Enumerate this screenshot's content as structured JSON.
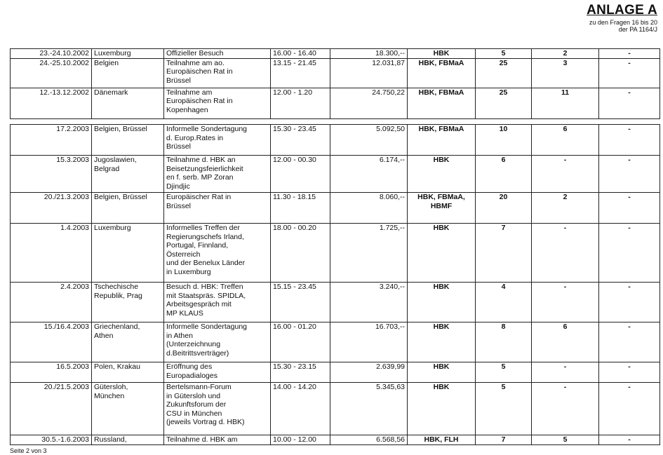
{
  "header": {
    "title": "ANLAGE A",
    "subtitle_line1": "zu den Fragen 16 bis 20",
    "subtitle_line2": "der PA 1164/J"
  },
  "table1": [
    [
      "23.-24.10.2002",
      "Luxemburg",
      "Offizieller Besuch",
      "16.00 - 16.40",
      "18.300,--",
      "HBK",
      "5",
      "2",
      "-"
    ],
    [
      "24.-25.10.2002",
      "Belgien",
      "Teilnahme am ao.\nEuropäischen Rat in\nBrüssel",
      "13.15 - 21.45",
      "12.031,87",
      "HBK, FBMaA",
      "25",
      "3",
      "-"
    ],
    [
      "12.-13.12.2002",
      "Dänemark",
      "Teilnahme am\nEuropäischen Rat in\nKopenhagen",
      "12.00 - 1.20",
      "24.750,22",
      "HBK, FBMaA",
      "25",
      "11",
      "-"
    ]
  ],
  "table2": [
    [
      "17.2.2003",
      "Belgien, Brüssel",
      "Informelle Sondertagung\nd. Europ.Rates in\nBrüssel",
      "15.30 - 23.45",
      "5.092,50",
      "HBK, FBMaA",
      "10",
      "6",
      "-"
    ],
    [
      "15.3.2003",
      "Jugoslawien,\nBelgrad",
      "Teilnahme d. HBK an\nBeisetzungsfeierlichkeit\nen f. serb. MP Zoran\nDjindjic",
      "12.00 - 00.30",
      "6.174,--",
      "HBK",
      "6",
      "-",
      "-"
    ],
    [
      "20./21.3.2003",
      "Belgien, Brüssel",
      "Europäischer Rat in\nBrüssel",
      "11.30 - 18.15",
      "8.060,--",
      "HBK, FBMaA,\nHBMF",
      "20",
      "2",
      "-"
    ],
    [
      "1.4.2003",
      "Luxemburg",
      "Informelles Treffen der\nRegierungschefs Irland,\nPortugal, Finnland,\nÖsterreich\nund der Benelux Länder\nin Luxemburg",
      "18.00 - 00.20",
      "1.725,--",
      "HBK",
      "7",
      "-",
      "-"
    ],
    [
      "2.4.2003",
      "Tschechische\nRepublik, Prag",
      "Besuch d. HBK: Treffen\nmit Staatspräs. SPIDLA,\nArbeitsgespräch mit\nMP KLAUS",
      "15.15 - 23.45",
      "3.240,--",
      "HBK",
      "4",
      "-",
      "-"
    ],
    [
      "15./16.4.2003",
      "Griechenland,\nAthen",
      "Informelle Sondertagung\nin Athen\n(Unterzeichnung\nd.Beitrittsverträger)",
      "16.00 - 01.20",
      "16.703,--",
      "HBK",
      "8",
      "6",
      "-"
    ],
    [
      "16.5.2003",
      "Polen, Krakau",
      "Eröffnung des\nEuropadialoges",
      "15.30 - 23.15",
      "2.639,99",
      "HBK",
      "5",
      "-",
      "-"
    ],
    [
      "20./21.5.2003",
      "Gütersloh,\nMünchen",
      "Bertelsmann-Forum\nin Gütersloh und\nZukunftsforum der\nCSU in München\n(jeweils Vortrag d. HBK)",
      "14.00 - 14.20",
      "5.345,63",
      "HBK",
      "5",
      "-",
      "-"
    ],
    [
      "30.5.-1.6.2003",
      "Russland,",
      "Teilnahme d. HBK am",
      "10.00 - 12.00",
      "6.568,56",
      "HBK, FLH",
      "7",
      "5",
      "-"
    ]
  ],
  "footer": {
    "page": "Seite 2 von 3"
  }
}
